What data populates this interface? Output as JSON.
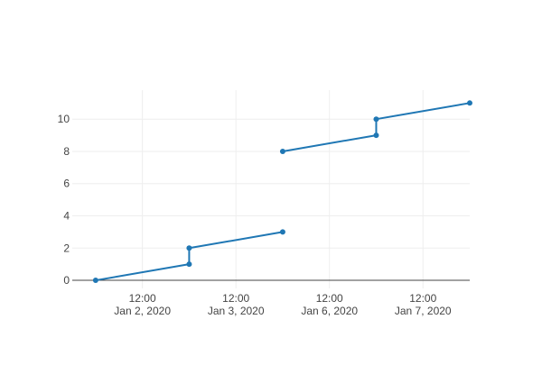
{
  "chart_data": {
    "type": "line",
    "xaxis": {
      "type": "category-gapped-dates",
      "tick_labels": [
        [
          "12:00",
          "Jan 2, 2020"
        ],
        [
          "12:00",
          "Jan 3, 2020"
        ],
        [
          "12:00",
          "Jan 6, 2020"
        ],
        [
          "12:00",
          "Jan 7, 2020"
        ]
      ],
      "grid": true
    },
    "yaxis": {
      "ticks": [
        0,
        2,
        4,
        6,
        8,
        10
      ],
      "range": [
        -0.5,
        11.8
      ],
      "grid": true,
      "zeroline": true
    },
    "series": [
      {
        "color": "#1f77b4",
        "mode": "lines+markers",
        "points": [
          {
            "x": "2020-01-02 00:00",
            "y": 0
          },
          {
            "x": "2020-01-03 00:00",
            "y": 1
          },
          {
            "x": "2020-01-03 00:00",
            "y": 2
          },
          {
            "x": "2020-01-04 00:00",
            "y": 3
          },
          {
            "x": "2020-01-06 00:00",
            "y": 8
          },
          {
            "x": "2020-01-07 00:00",
            "y": 9
          },
          {
            "x": "2020-01-07 00:00",
            "y": 10
          },
          {
            "x": "2020-01-08 00:00",
            "y": 11
          }
        ]
      }
    ]
  }
}
